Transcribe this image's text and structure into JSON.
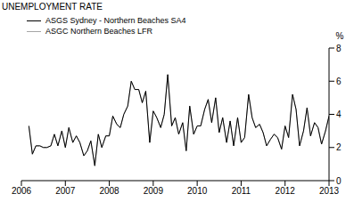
{
  "chart_data": {
    "type": "line",
    "title": "UNEMPLOYMENT RATE",
    "y_label": "%",
    "x": [
      2006.17,
      2006.25,
      2006.33,
      2006.42,
      2006.5,
      2006.58,
      2006.67,
      2006.75,
      2006.83,
      2006.92,
      2007.0,
      2007.08,
      2007.17,
      2007.25,
      2007.33,
      2007.42,
      2007.5,
      2007.58,
      2007.67,
      2007.75,
      2007.83,
      2007.92,
      2008.0,
      2008.08,
      2008.17,
      2008.25,
      2008.33,
      2008.42,
      2008.5,
      2008.58,
      2008.67,
      2008.75,
      2008.83,
      2008.92,
      2009.0,
      2009.08,
      2009.17,
      2009.25,
      2009.33,
      2009.42,
      2009.5,
      2009.58,
      2009.67,
      2009.75,
      2009.83,
      2009.92,
      2010.0,
      2010.08,
      2010.17,
      2010.25,
      2010.33,
      2010.42,
      2010.5,
      2010.58,
      2010.67,
      2010.75,
      2010.83,
      2010.92,
      2011.0,
      2011.08,
      2011.17,
      2011.25,
      2011.33,
      2011.42,
      2011.5,
      2011.58,
      2011.67,
      2011.75,
      2011.83,
      2011.92,
      2012.0,
      2012.08,
      2012.17,
      2012.25,
      2012.33,
      2012.42,
      2012.5,
      2012.58,
      2012.67,
      2012.75,
      2012.83,
      2012.92,
      2013.0
    ],
    "series": [
      {
        "name": "ASGC Northern Beaches LFR",
        "color": "#a6a6a6",
        "values": [
          3.3,
          1.6,
          2.1,
          2.1,
          2.0,
          2.0,
          2.1,
          2.8,
          2.1,
          3.0,
          2.0,
          3.2,
          2.3,
          2.7,
          2.3,
          1.5,
          1.8,
          2.4,
          0.9,
          2.8,
          2.0,
          2.7,
          2.7,
          3.9,
          3.4,
          3.2,
          4.0,
          4.5,
          6.0,
          5.5,
          5.5,
          4.7,
          5.4,
          2.3,
          4.2,
          3.8,
          3.2,
          4.0,
          6.4,
          3.3,
          3.8,
          2.8,
          3.5,
          1.8,
          4.5,
          2.8,
          3.3,
          3.3,
          4.3,
          4.9,
          3.5,
          5.0,
          2.9,
          3.8,
          2.3,
          3.6,
          2.1,
          3.8,
          2.3,
          2.6,
          5.2,
          3.8,
          3.2,
          3.4,
          2.9,
          2.1,
          2.5,
          2.8,
          2.6,
          1.9,
          3.3,
          2.6,
          5.2,
          4.3,
          2.1,
          3.0,
          4.4,
          2.7,
          3.5,
          3.2,
          2.2,
          3.0,
          3.9
        ]
      },
      {
        "name": "ASGS Sydney - Northern Beaches SA4",
        "color": "#000000",
        "values": [
          3.3,
          1.6,
          2.1,
          2.1,
          2.0,
          2.0,
          2.1,
          2.8,
          2.1,
          3.0,
          2.0,
          3.2,
          2.3,
          2.7,
          2.3,
          1.5,
          1.8,
          2.4,
          0.9,
          2.8,
          2.0,
          2.7,
          2.7,
          3.9,
          3.4,
          3.2,
          4.0,
          4.5,
          6.0,
          5.5,
          5.5,
          4.7,
          5.4,
          2.3,
          4.2,
          3.8,
          3.2,
          4.0,
          6.4,
          3.3,
          3.8,
          2.8,
          3.5,
          1.8,
          4.5,
          2.8,
          3.3,
          3.3,
          4.3,
          4.9,
          3.5,
          5.0,
          2.9,
          3.8,
          2.3,
          3.6,
          2.1,
          3.8,
          2.3,
          2.6,
          5.2,
          3.8,
          3.2,
          3.4,
          2.9,
          2.1,
          2.5,
          2.8,
          2.6,
          1.9,
          3.3,
          2.6,
          5.2,
          4.3,
          2.1,
          3.0,
          4.4,
          2.7,
          3.5,
          3.2,
          2.2,
          3.0,
          3.9
        ]
      }
    ],
    "xlim": [
      2006,
      2013
    ],
    "xticks": [
      2006,
      2007,
      2008,
      2009,
      2010,
      2011,
      2012,
      2013
    ],
    "ylim": [
      0,
      8
    ],
    "yticks": [
      0,
      2,
      4,
      6,
      8
    ],
    "grid": false
  }
}
